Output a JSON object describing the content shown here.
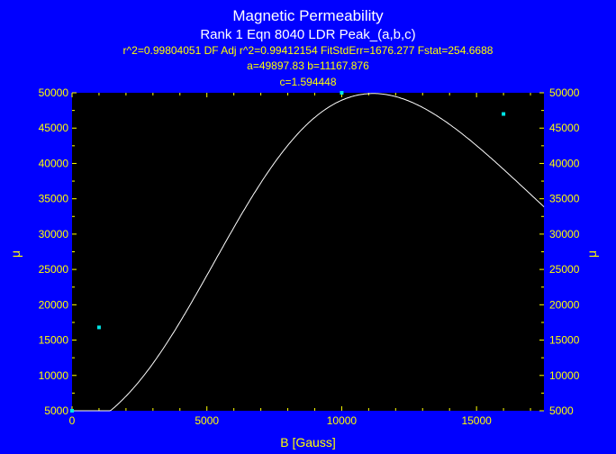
{
  "chart_data": {
    "type": "scatter",
    "title": "Magnetic Permeability",
    "subtitle": "Rank 1  Eqn 8040  LDR Peak_(a,b,c)",
    "stats_line1": "r^2=0.99804051  DF Adj r^2=0.99412154  FitStdErr=1676.277  Fstat=254.6688",
    "stats_line2": "a=49897.83 b=11167.876",
    "stats_line3": "c=1.594448",
    "xlabel": "B [Gauss]",
    "ylabel": "μ",
    "xlim": [
      0,
      17500
    ],
    "ylim": [
      5000,
      50000
    ],
    "x_ticks": [
      "0",
      "5000",
      "10000",
      "15000"
    ],
    "y_ticks": [
      "5000",
      "10000",
      "15000",
      "20000",
      "25000",
      "30000",
      "35000",
      "40000",
      "45000",
      "50000"
    ],
    "points": [
      {
        "x": 0,
        "y": 5000
      },
      {
        "x": 1000,
        "y": 16800
      },
      {
        "x": 10000,
        "y": 50000
      },
      {
        "x": 16000,
        "y": 47000
      }
    ],
    "fit": {
      "a": 49897.83,
      "b": 11167.876,
      "c": 1.594448
    },
    "grid": false,
    "colors": {
      "background": "#0000ff",
      "plot_area": "#000000",
      "text": "#ffff00",
      "title": "#ffffff",
      "curve": "#ffffff",
      "points": "#00e5e5"
    }
  }
}
